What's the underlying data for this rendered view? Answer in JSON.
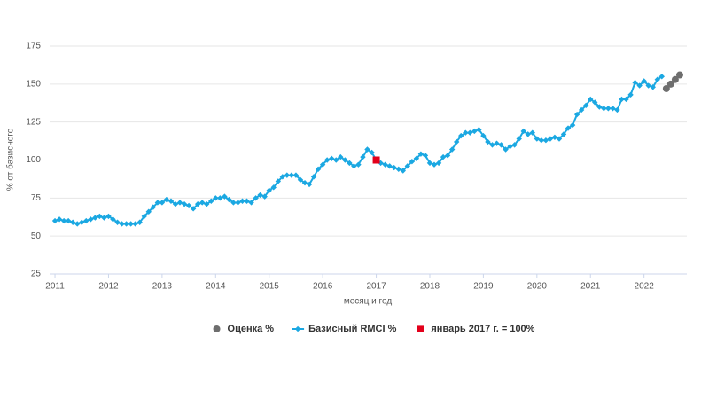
{
  "chart_data": {
    "type": "line",
    "x_label": "месяц и год",
    "y_label": "% от базисного",
    "xlim": [
      2010.9,
      2022.8
    ],
    "xticks": [
      2011,
      2012,
      2013,
      2014,
      2015,
      2016,
      2017,
      2018,
      2019,
      2020,
      2021,
      2022
    ],
    "ylim": [
      25,
      175
    ],
    "yticks": [
      25,
      50,
      75,
      100,
      125,
      150,
      175
    ],
    "grid": true,
    "legend": "bottom",
    "series": [
      {
        "name": "Оценка %",
        "color": "#6e6e6e",
        "marker": "circle",
        "line": false,
        "x": [
          2022.417,
          2022.5,
          2022.583,
          2022.667
        ],
        "values": [
          147,
          150,
          153,
          156
        ]
      },
      {
        "name": "Базисный RMCI %",
        "color": "#1ba8e2",
        "marker": "diamond",
        "line": true,
        "x": [
          2011,
          2011.083,
          2011.167,
          2011.25,
          2011.333,
          2011.417,
          2011.5,
          2011.583,
          2011.667,
          2011.75,
          2011.833,
          2011.917,
          2012,
          2012.083,
          2012.167,
          2012.25,
          2012.333,
          2012.417,
          2012.5,
          2012.583,
          2012.667,
          2012.75,
          2012.833,
          2012.917,
          2013,
          2013.083,
          2013.167,
          2013.25,
          2013.333,
          2013.417,
          2013.5,
          2013.583,
          2013.667,
          2013.75,
          2013.833,
          2013.917,
          2014,
          2014.083,
          2014.167,
          2014.25,
          2014.333,
          2014.417,
          2014.5,
          2014.583,
          2014.667,
          2014.75,
          2014.833,
          2014.917,
          2015,
          2015.083,
          2015.167,
          2015.25,
          2015.333,
          2015.417,
          2015.5,
          2015.583,
          2015.667,
          2015.75,
          2015.833,
          2015.917,
          2016,
          2016.083,
          2016.167,
          2016.25,
          2016.333,
          2016.417,
          2016.5,
          2016.583,
          2016.667,
          2016.75,
          2016.833,
          2016.917,
          2017,
          2017.083,
          2017.167,
          2017.25,
          2017.333,
          2017.417,
          2017.5,
          2017.583,
          2017.667,
          2017.75,
          2017.833,
          2017.917,
          2018,
          2018.083,
          2018.167,
          2018.25,
          2018.333,
          2018.417,
          2018.5,
          2018.583,
          2018.667,
          2018.75,
          2018.833,
          2018.917,
          2019,
          2019.083,
          2019.167,
          2019.25,
          2019.333,
          2019.417,
          2019.5,
          2019.583,
          2019.667,
          2019.75,
          2019.833,
          2019.917,
          2020,
          2020.083,
          2020.167,
          2020.25,
          2020.333,
          2020.417,
          2020.5,
          2020.583,
          2020.667,
          2020.75,
          2020.833,
          2020.917,
          2021,
          2021.083,
          2021.167,
          2021.25,
          2021.333,
          2021.417,
          2021.5,
          2021.583,
          2021.667,
          2021.75,
          2021.833,
          2021.917,
          2022,
          2022.083,
          2022.167,
          2022.25,
          2022.333
        ],
        "values": [
          60,
          61,
          60,
          60,
          59,
          58,
          59,
          60,
          61,
          62,
          63,
          62,
          63,
          61,
          59,
          58,
          58,
          58,
          58,
          59,
          63,
          66,
          69,
          72,
          72,
          74,
          73,
          71,
          72,
          71,
          70,
          68,
          71,
          72,
          71,
          73,
          75,
          75,
          76,
          74,
          72,
          72,
          73,
          73,
          72,
          75,
          77,
          76,
          80,
          82,
          86,
          89,
          90,
          90,
          90,
          87,
          85,
          84,
          89,
          94,
          97,
          100,
          101,
          100,
          102,
          100,
          98,
          96,
          97,
          102,
          107,
          105,
          100,
          98,
          97,
          96,
          95,
          94,
          93,
          96,
          99,
          101,
          104,
          103,
          98,
          97,
          98,
          102,
          103,
          107,
          112,
          116,
          118,
          118,
          119,
          120,
          116,
          112,
          110,
          111,
          110,
          107,
          109,
          110,
          114,
          119,
          117,
          118,
          114,
          113,
          113,
          114,
          115,
          114,
          117,
          121,
          123,
          130,
          133,
          136,
          140,
          138,
          135,
          134,
          134,
          134,
          133,
          140,
          140,
          143,
          151,
          149,
          152,
          149,
          148,
          153,
          155
        ]
      },
      {
        "name": "январь 2017 г. = 100%",
        "color": "#e3001b",
        "marker": "square",
        "line": false,
        "x": [
          2017
        ],
        "values": [
          100
        ]
      }
    ]
  }
}
